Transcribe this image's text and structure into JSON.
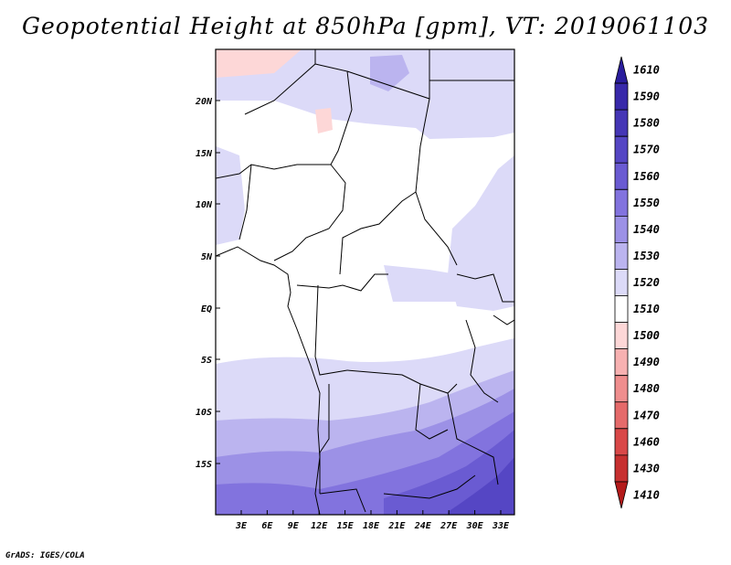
{
  "title": "Geopotential Height at 850hPa [gpm], VT: 2019061103",
  "credit": "GrADS: IGES/COLA",
  "map": {
    "lat_labels": [
      "20N",
      "15N",
      "10N",
      "5N",
      "EQ",
      "5S",
      "10S",
      "15S"
    ],
    "lon_labels": [
      "3E",
      "6E",
      "9E",
      "12E",
      "15E",
      "18E",
      "21E",
      "24E",
      "27E",
      "30E",
      "33E"
    ]
  },
  "colorbar": {
    "labels": [
      "1610",
      "1590",
      "1580",
      "1570",
      "1560",
      "1550",
      "1540",
      "1530",
      "1520",
      "1510",
      "1500",
      "1490",
      "1480",
      "1470",
      "1460",
      "1430",
      "1410"
    ],
    "colors": [
      "#2a1d9c",
      "#3829aa",
      "#4536b6",
      "#5546c4",
      "#6a5bd2",
      "#8273de",
      "#9c91e6",
      "#bbb4ef",
      "#dcdaf8",
      "#ffffff",
      "#fdd7d7",
      "#f7b1b1",
      "#ef8e8e",
      "#e56a6a",
      "#d94848",
      "#c73030",
      "#b41b1b"
    ]
  }
}
